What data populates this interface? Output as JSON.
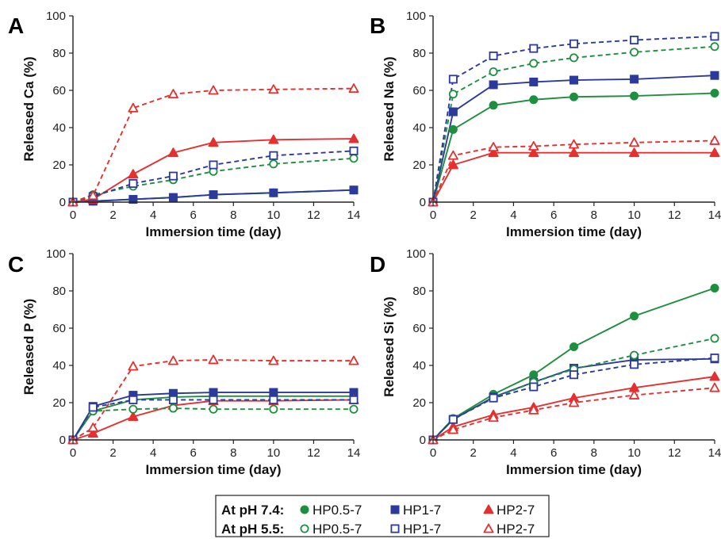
{
  "chart_data": [
    {
      "panel": "A",
      "type": "line",
      "xlabel": "Immersion time (day)",
      "ylabel": "Released Ca (%)",
      "xlim": [
        0,
        14
      ],
      "ylim": [
        0,
        100
      ],
      "xticks": [
        0,
        2,
        4,
        6,
        8,
        10,
        12,
        14
      ],
      "yticks": [
        0,
        20,
        40,
        60,
        80,
        100
      ],
      "x": [
        0,
        1,
        3,
        5,
        7,
        10,
        14
      ],
      "series": [
        {
          "group": "pH 7.4",
          "label": "HP0.5-7",
          "color": "#1e8f3e",
          "marker": "circle",
          "filled": true,
          "dashed": false,
          "values": [
            0,
            0.5,
            1.5,
            2.5,
            4,
            5,
            6.5
          ]
        },
        {
          "group": "pH 7.4",
          "label": "HP1-7",
          "color": "#2b3a9b",
          "marker": "square",
          "filled": true,
          "dashed": false,
          "values": [
            0,
            0.5,
            1.5,
            2.5,
            4,
            5,
            6.5
          ]
        },
        {
          "group": "pH 7.4",
          "label": "HP2-7",
          "color": "#e53030",
          "marker": "triangle",
          "filled": true,
          "dashed": false,
          "values": [
            0,
            1.5,
            15,
            26.5,
            32,
            33.5,
            34
          ]
        },
        {
          "group": "pH 5.5",
          "label": "HP0.5-7",
          "color": "#1e8f3e",
          "marker": "circle",
          "filled": false,
          "dashed": true,
          "values": [
            0,
            4,
            8.5,
            12,
            16.5,
            20.5,
            23.5
          ]
        },
        {
          "group": "pH 5.5",
          "label": "HP1-7",
          "color": "#2b3a9b",
          "marker": "square",
          "filled": false,
          "dashed": true,
          "values": [
            0,
            3,
            10,
            14,
            20,
            25,
            27.5
          ]
        },
        {
          "group": "pH 5.5",
          "label": "HP2-7",
          "color": "#e53030",
          "marker": "triangle",
          "filled": false,
          "dashed": true,
          "values": [
            0,
            3.5,
            50.5,
            58,
            60,
            60.5,
            61
          ]
        }
      ]
    },
    {
      "panel": "B",
      "type": "line",
      "xlabel": "Immersion time (day)",
      "ylabel": "Released Na (%)",
      "xlim": [
        0,
        14
      ],
      "ylim": [
        0,
        100
      ],
      "xticks": [
        0,
        2,
        4,
        6,
        8,
        10,
        12,
        14
      ],
      "yticks": [
        0,
        20,
        40,
        60,
        80,
        100
      ],
      "x": [
        0,
        1,
        3,
        5,
        7,
        10,
        14
      ],
      "series": [
        {
          "group": "pH 7.4",
          "label": "HP0.5-7",
          "color": "#1e8f3e",
          "marker": "circle",
          "filled": true,
          "dashed": false,
          "values": [
            0,
            39,
            52,
            55,
            56.5,
            57,
            58.5
          ]
        },
        {
          "group": "pH 7.4",
          "label": "HP1-7",
          "color": "#2b3a9b",
          "marker": "square",
          "filled": true,
          "dashed": false,
          "values": [
            0,
            48.5,
            63,
            64.5,
            65.5,
            66,
            68
          ]
        },
        {
          "group": "pH 7.4",
          "label": "HP2-7",
          "color": "#e53030",
          "marker": "triangle",
          "filled": true,
          "dashed": false,
          "values": [
            0,
            20,
            26.5,
            26.5,
            26.5,
            26.5,
            26.5
          ]
        },
        {
          "group": "pH 5.5",
          "label": "HP0.5-7",
          "color": "#1e8f3e",
          "marker": "circle",
          "filled": false,
          "dashed": true,
          "values": [
            0,
            58,
            70,
            74.5,
            77.5,
            80.5,
            83.5
          ]
        },
        {
          "group": "pH 5.5",
          "label": "HP1-7",
          "color": "#2b3a9b",
          "marker": "square",
          "filled": false,
          "dashed": true,
          "values": [
            0,
            66,
            78.5,
            82.5,
            85,
            87,
            89
          ]
        },
        {
          "group": "pH 5.5",
          "label": "HP2-7",
          "color": "#e53030",
          "marker": "triangle",
          "filled": false,
          "dashed": true,
          "values": [
            0,
            25,
            29.5,
            30,
            31,
            32,
            33
          ]
        }
      ]
    },
    {
      "panel": "C",
      "type": "line",
      "xlabel": "Immersion time (day)",
      "ylabel": "Released P (%)",
      "xlim": [
        0,
        14
      ],
      "ylim": [
        0,
        100
      ],
      "xticks": [
        0,
        2,
        4,
        6,
        8,
        10,
        12,
        14
      ],
      "yticks": [
        0,
        20,
        40,
        60,
        80,
        100
      ],
      "x": [
        0,
        1,
        3,
        5,
        7,
        10,
        14
      ],
      "series": [
        {
          "group": "pH 7.4",
          "label": "HP0.5-7",
          "color": "#1e8f3e",
          "marker": "circle",
          "filled": true,
          "dashed": false,
          "values": [
            0,
            15.5,
            21.5,
            23,
            23.5,
            23.5,
            23.5
          ]
        },
        {
          "group": "pH 7.4",
          "label": "HP1-7",
          "color": "#2b3a9b",
          "marker": "square",
          "filled": true,
          "dashed": false,
          "values": [
            0,
            18,
            24,
            25,
            25.5,
            25.5,
            25.5
          ]
        },
        {
          "group": "pH 7.4",
          "label": "HP2-7",
          "color": "#e53030",
          "marker": "triangle",
          "filled": true,
          "dashed": false,
          "values": [
            0,
            3.5,
            12.5,
            18.5,
            21,
            21,
            21.5
          ]
        },
        {
          "group": "pH 5.5",
          "label": "HP0.5-7",
          "color": "#1e8f3e",
          "marker": "circle",
          "filled": false,
          "dashed": true,
          "values": [
            0,
            15.5,
            16.5,
            17,
            16.5,
            16.5,
            16.5
          ]
        },
        {
          "group": "pH 5.5",
          "label": "HP1-7",
          "color": "#2b3a9b",
          "marker": "square",
          "filled": false,
          "dashed": true,
          "values": [
            0,
            17.5,
            21.5,
            21.5,
            21.5,
            21.5,
            21.5
          ]
        },
        {
          "group": "pH 5.5",
          "label": "HP2-7",
          "color": "#e53030",
          "marker": "triangle",
          "filled": false,
          "dashed": true,
          "values": [
            0,
            6.5,
            39.5,
            42.5,
            43,
            42.5,
            42.5
          ]
        }
      ]
    },
    {
      "panel": "D",
      "type": "line",
      "xlabel": "Immersion time (day)",
      "ylabel": "Released Si (%)",
      "xlim": [
        0,
        14
      ],
      "ylim": [
        0,
        100
      ],
      "xticks": [
        0,
        2,
        4,
        6,
        8,
        10,
        12,
        14
      ],
      "yticks": [
        0,
        20,
        40,
        60,
        80,
        100
      ],
      "x": [
        0,
        1,
        3,
        5,
        7,
        10,
        14
      ],
      "series": [
        {
          "group": "pH 7.4",
          "label": "HP0.5-7",
          "color": "#1e8f3e",
          "marker": "circle",
          "filled": true,
          "dashed": false,
          "values": [
            0,
            11.5,
            24.5,
            35,
            50,
            66.5,
            81.5
          ]
        },
        {
          "group": "pH 7.4",
          "label": "HP1-7",
          "color": "#2b3a9b",
          "marker": "square",
          "filled": true,
          "dashed": false,
          "values": [
            0,
            11,
            23,
            31,
            38.5,
            43,
            43.5
          ]
        },
        {
          "group": "pH 7.4",
          "label": "HP2-7",
          "color": "#e53030",
          "marker": "triangle",
          "filled": true,
          "dashed": false,
          "values": [
            0,
            7,
            13.5,
            17.5,
            22.5,
            28,
            34
          ]
        },
        {
          "group": "pH 5.5",
          "label": "HP0.5-7",
          "color": "#1e8f3e",
          "marker": "circle",
          "filled": false,
          "dashed": true,
          "values": [
            0,
            11.5,
            22.5,
            31,
            38,
            45.5,
            54.5
          ]
        },
        {
          "group": "pH 5.5",
          "label": "HP1-7",
          "color": "#2b3a9b",
          "marker": "square",
          "filled": false,
          "dashed": true,
          "values": [
            0,
            11,
            22.5,
            28.5,
            35,
            40.5,
            44
          ]
        },
        {
          "group": "pH 5.5",
          "label": "HP2-7",
          "color": "#e53030",
          "marker": "triangle",
          "filled": false,
          "dashed": true,
          "values": [
            0,
            5.5,
            12,
            16,
            20,
            24,
            28
          ]
        }
      ]
    }
  ],
  "legend": {
    "rows": [
      {
        "heading": "At pH 7.4:",
        "items": [
          {
            "label": "HP0.5-7",
            "color": "#1e8f3e",
            "marker": "circle",
            "filled": true
          },
          {
            "label": "HP1-7",
            "color": "#2b3a9b",
            "marker": "square",
            "filled": true
          },
          {
            "label": "HP2-7",
            "color": "#e53030",
            "marker": "triangle",
            "filled": true
          }
        ]
      },
      {
        "heading": "At pH 5.5:",
        "items": [
          {
            "label": "HP0.5-7",
            "color": "#1e8f3e",
            "marker": "circle",
            "filled": false
          },
          {
            "label": "HP1-7",
            "color": "#2b3a9b",
            "marker": "square",
            "filled": false
          },
          {
            "label": "HP2-7",
            "color": "#e53030",
            "marker": "triangle",
            "filled": false
          }
        ]
      }
    ]
  }
}
